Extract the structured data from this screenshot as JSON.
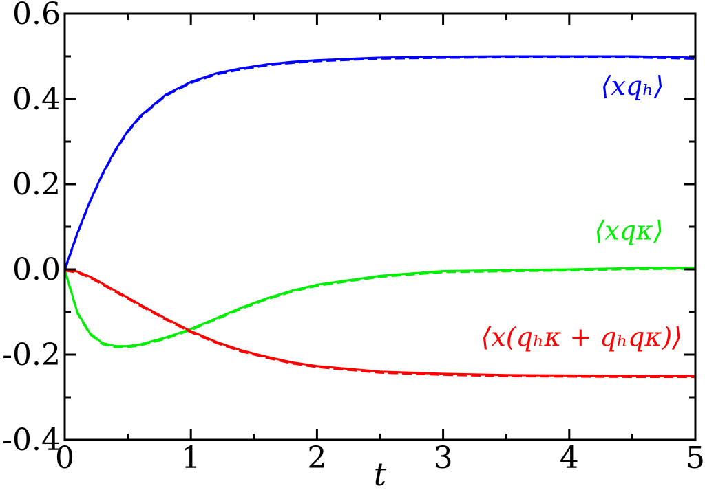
{
  "chart_data": {
    "type": "line",
    "xlabel": "t",
    "ylabel": "",
    "xlim": [
      0,
      5
    ],
    "ylim": [
      -0.4,
      0.6
    ],
    "xticks": [
      0,
      1,
      2,
      3,
      4,
      5
    ],
    "xtick_labels": [
      "0",
      "1",
      "2",
      "3",
      "4",
      "5"
    ],
    "yticks": [
      -0.4,
      -0.2,
      0.0,
      0.2,
      0.4,
      0.6
    ],
    "ytick_labels": [
      "-0.4",
      "-0.2",
      "0.0",
      "0.2",
      "0.4",
      "0.6"
    ],
    "grid": false,
    "series": [
      {
        "name": "⟨xqₕ⟩",
        "color": "#0000ff",
        "x": [
          0,
          0.1,
          0.2,
          0.3,
          0.4,
          0.5,
          0.6,
          0.8,
          1.0,
          1.2,
          1.4,
          1.6,
          1.8,
          2.0,
          2.5,
          3.0,
          3.5,
          4.0,
          4.5,
          5.0
        ],
        "y": [
          0,
          0.085,
          0.16,
          0.225,
          0.28,
          0.325,
          0.36,
          0.41,
          0.44,
          0.46,
          0.472,
          0.481,
          0.487,
          0.491,
          0.497,
          0.499,
          0.5,
          0.5,
          0.5,
          0.497
        ]
      },
      {
        "name": "⟨xqκ⟩",
        "color": "#00ee00",
        "x": [
          0,
          0.1,
          0.2,
          0.3,
          0.4,
          0.5,
          0.6,
          0.8,
          1.0,
          1.2,
          1.4,
          1.6,
          1.8,
          2.0,
          2.5,
          3.0,
          3.5,
          4.0,
          4.5,
          5.0
        ],
        "y": [
          0,
          -0.1,
          -0.15,
          -0.173,
          -0.18,
          -0.18,
          -0.176,
          -0.16,
          -0.14,
          -0.115,
          -0.09,
          -0.068,
          -0.05,
          -0.036,
          -0.015,
          -0.004,
          -0.002,
          0.0,
          0.003,
          0.004
        ]
      },
      {
        "name": "⟨x(qₕκ + qₕqκ)⟩",
        "color": "#ff0000",
        "x": [
          0,
          0.1,
          0.2,
          0.3,
          0.4,
          0.5,
          0.6,
          0.8,
          1.0,
          1.2,
          1.4,
          1.6,
          1.8,
          2.0,
          2.5,
          3.0,
          3.5,
          4.0,
          4.5,
          5.0
        ],
        "y": [
          0,
          -0.005,
          -0.017,
          -0.033,
          -0.05,
          -0.066,
          -0.083,
          -0.115,
          -0.145,
          -0.17,
          -0.19,
          -0.205,
          -0.218,
          -0.227,
          -0.24,
          -0.245,
          -0.248,
          -0.249,
          -0.25,
          -0.25
        ]
      }
    ],
    "annotations": [
      {
        "text": "⟨xqₕ⟩",
        "x": 4.25,
        "y": 0.41,
        "color": "#0000ff"
      },
      {
        "text": "⟨xqκ⟩",
        "x": 4.2,
        "y": 0.07,
        "color": "#00ee00"
      },
      {
        "text": "⟨x(qₕκ + qₕqκ)⟩",
        "x": 3.3,
        "y": -0.18,
        "color": "#ff0000"
      }
    ]
  }
}
